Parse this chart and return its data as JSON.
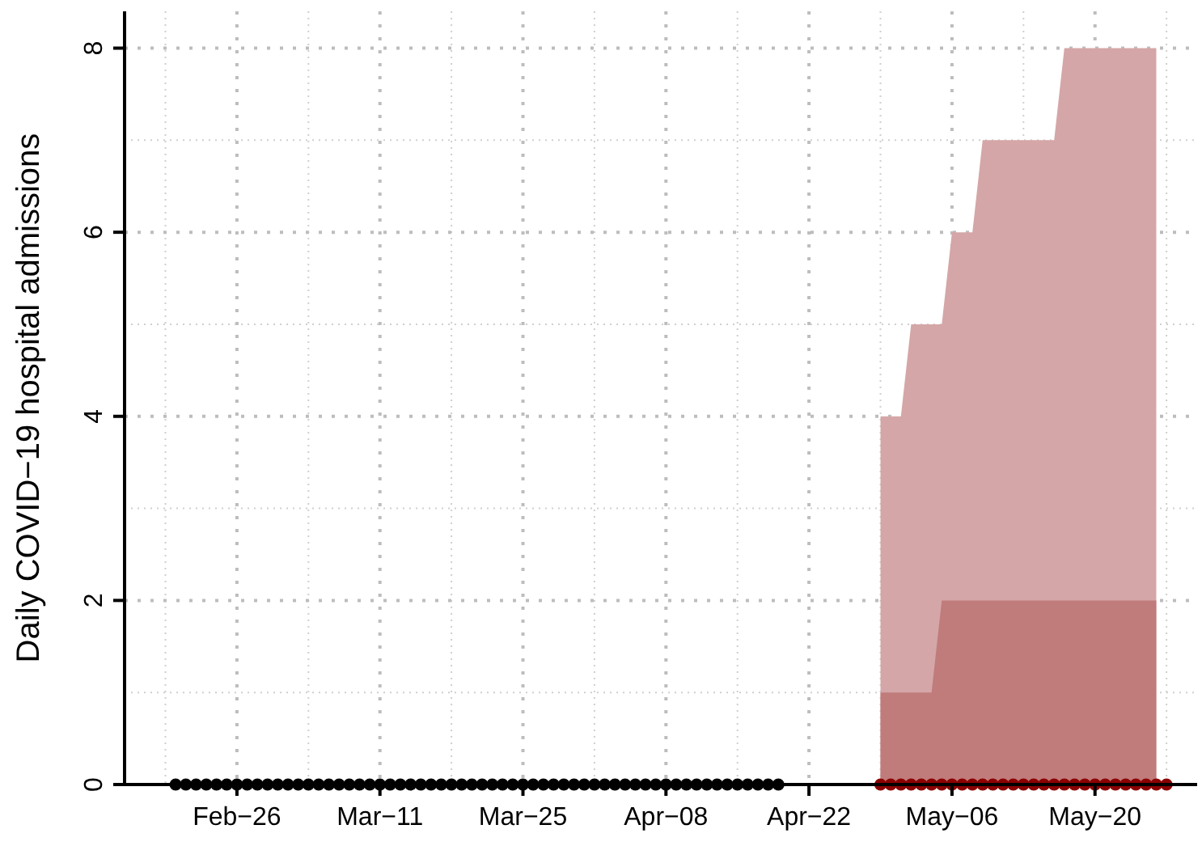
{
  "chart_data": {
    "type": "area",
    "ylabel": "Daily COVID−19 hospital admissions",
    "xlim": [
      "--02-15",
      "--05-30"
    ],
    "ylim": [
      0,
      8.4
    ],
    "xticks": [
      {
        "value": "--02-19",
        "label": null
      },
      {
        "value": "--02-26",
        "label": "Feb−26"
      },
      {
        "value": "--03-04",
        "label": null
      },
      {
        "value": "--03-11",
        "label": "Mar−11"
      },
      {
        "value": "--03-18",
        "label": null
      },
      {
        "value": "--03-25",
        "label": "Mar−25"
      },
      {
        "value": "--04-01",
        "label": null
      },
      {
        "value": "--04-08",
        "label": "Apr−08"
      },
      {
        "value": "--04-15",
        "label": null
      },
      {
        "value": "--04-22",
        "label": "Apr−22"
      },
      {
        "value": "--04-29",
        "label": null
      },
      {
        "value": "--05-06",
        "label": "May−06"
      },
      {
        "value": "--05-13",
        "label": null
      },
      {
        "value": "--05-20",
        "label": "May−20"
      },
      {
        "value": "--05-27",
        "label": null
      }
    ],
    "yticks": [
      0,
      {
        "value": 1,
        "label": null
      },
      2,
      {
        "value": 3,
        "label": null
      },
      4,
      {
        "value": 5,
        "label": null
      },
      6,
      {
        "value": 7,
        "label": null
      },
      8
    ],
    "grid": true,
    "series": [
      {
        "color": "#d5a6a7",
        "x": [
          "--04-29",
          "--04-30",
          "--05-01",
          "--05-02",
          "--05-03",
          "--05-04",
          "--05-05",
          "--05-06",
          "--05-07",
          "--05-08",
          "--05-09",
          "--05-10",
          "--05-11",
          "--05-12",
          "--05-13",
          "--05-14",
          "--05-15",
          "--05-16",
          "--05-17",
          "--05-18",
          "--05-19",
          "--05-20",
          "--05-21",
          "--05-22",
          "--05-23",
          "--05-24",
          "--05-25",
          "--05-26"
        ],
        "values": [
          4,
          4,
          4,
          5,
          5,
          5,
          5,
          6,
          6,
          6,
          7,
          7,
          7,
          7,
          7,
          7,
          7,
          7,
          8,
          8,
          8,
          8,
          8,
          8,
          8,
          8,
          8,
          8
        ]
      },
      {
        "color": "#c07b7b",
        "x": [
          "--04-29",
          "--04-30",
          "--05-01",
          "--05-02",
          "--05-03",
          "--05-04",
          "--05-05",
          "--05-06",
          "--05-07",
          "--05-08",
          "--05-09",
          "--05-10",
          "--05-11",
          "--05-12",
          "--05-13",
          "--05-14",
          "--05-15",
          "--05-16",
          "--05-17",
          "--05-18",
          "--05-19",
          "--05-20",
          "--05-21",
          "--05-22",
          "--05-23",
          "--05-24",
          "--05-25",
          "--05-26"
        ],
        "values": [
          1,
          1,
          1,
          1,
          1,
          1,
          2,
          2,
          2,
          2,
          2,
          2,
          2,
          2,
          2,
          2,
          2,
          2,
          2,
          2,
          2,
          2,
          2,
          2,
          2,
          2,
          2,
          2
        ]
      },
      {
        "type": "scatter",
        "color": "#000000",
        "marker": "circle",
        "x": [
          "--02-20",
          "--02-21",
          "--02-22",
          "--02-23",
          "--02-24",
          "--02-25",
          "--02-26",
          "--02-27",
          "--02-28",
          "--02-29",
          "--03-01",
          "--03-02",
          "--03-03",
          "--03-04",
          "--03-05",
          "--03-06",
          "--03-07",
          "--03-08",
          "--03-09",
          "--03-10",
          "--03-11",
          "--03-12",
          "--03-13",
          "--03-14",
          "--03-15",
          "--03-16",
          "--03-17",
          "--03-18",
          "--03-19",
          "--03-20",
          "--03-21",
          "--03-22",
          "--03-23",
          "--03-24",
          "--03-25",
          "--03-26",
          "--03-27",
          "--03-28",
          "--03-29",
          "--03-30",
          "--03-31",
          "--04-01",
          "--04-02",
          "--04-03",
          "--04-04",
          "--04-05",
          "--04-06",
          "--04-07",
          "--04-08",
          "--04-09",
          "--04-10",
          "--04-11",
          "--04-12",
          "--04-13",
          "--04-14",
          "--04-15",
          "--04-16",
          "--04-17",
          "--04-18",
          "--04-19"
        ],
        "values": [
          0,
          0,
          0,
          0,
          0,
          0,
          0,
          0,
          0,
          0,
          0,
          0,
          0,
          0,
          0,
          0,
          0,
          0,
          0,
          0,
          0,
          0,
          0,
          0,
          0,
          0,
          0,
          0,
          0,
          0,
          0,
          0,
          0,
          0,
          0,
          0,
          0,
          0,
          0,
          0,
          0,
          0,
          0,
          0,
          0,
          0,
          0,
          0,
          0,
          0,
          0,
          0,
          0,
          0,
          0,
          0,
          0,
          0,
          0,
          0
        ]
      },
      {
        "type": "scatter",
        "color": "#8b0000",
        "marker": "circle",
        "x": [
          "--04-29",
          "--04-30",
          "--05-01",
          "--05-02",
          "--05-03",
          "--05-04",
          "--05-05",
          "--05-06",
          "--05-07",
          "--05-08",
          "--05-09",
          "--05-10",
          "--05-11",
          "--05-12",
          "--05-13",
          "--05-14",
          "--05-15",
          "--05-16",
          "--05-17",
          "--05-18",
          "--05-19",
          "--05-20",
          "--05-21",
          "--05-22",
          "--05-23",
          "--05-24",
          "--05-25",
          "--05-26",
          "--05-27"
        ],
        "values": [
          0,
          0,
          0,
          0,
          0,
          0,
          0,
          0,
          0,
          0,
          0,
          0,
          0,
          0,
          0,
          0,
          0,
          0,
          0,
          0,
          0,
          0,
          0,
          0,
          0,
          0,
          0,
          0,
          0
        ]
      }
    ]
  }
}
